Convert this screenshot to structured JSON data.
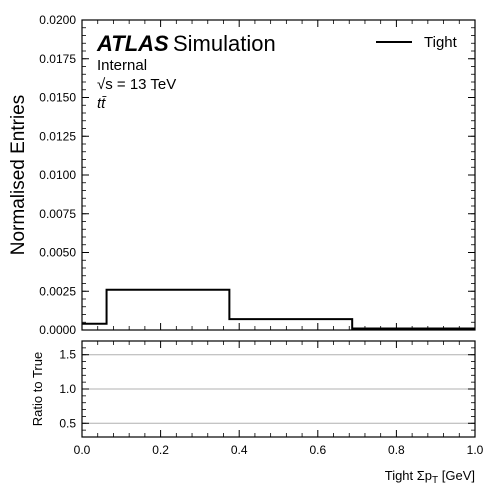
{
  "chart_data": [
    {
      "type": "histogram",
      "ylabel": "Normalised Entries",
      "ylim": [
        0,
        0.02
      ],
      "xlim": [
        0,
        1
      ],
      "yticks": [
        "0.0000",
        "0.0025",
        "0.0050",
        "0.0075",
        "0.0100",
        "0.0125",
        "0.0150",
        "0.0175",
        "0.0200"
      ],
      "bin_edges": [
        0,
        0.0625,
        0.375,
        0.6875,
        1.0
      ],
      "series": [
        {
          "name": "Tight",
          "values": [
            0.0004,
            0.0026,
            0.0007,
            0.0001
          ],
          "color": "#000000"
        }
      ],
      "legend": {
        "position": "top-right"
      },
      "annotations": {
        "atlas": "ATLAS",
        "simulation": "Simulation",
        "internal": "Internal",
        "energy": "√s = 13 TeV",
        "process": "tt̄"
      }
    },
    {
      "type": "line",
      "ylabel": "Ratio to True",
      "xlabel": "Tight Σp_T [GeV]",
      "xlim": [
        0,
        1
      ],
      "ylim": [
        0.3,
        1.7
      ],
      "xticks": [
        "0.0",
        "0.2",
        "0.4",
        "0.6",
        "0.8",
        "1.0"
      ],
      "yticks": [
        "0.5",
        "1.0",
        "1.5"
      ],
      "grid": true,
      "series": []
    }
  ]
}
